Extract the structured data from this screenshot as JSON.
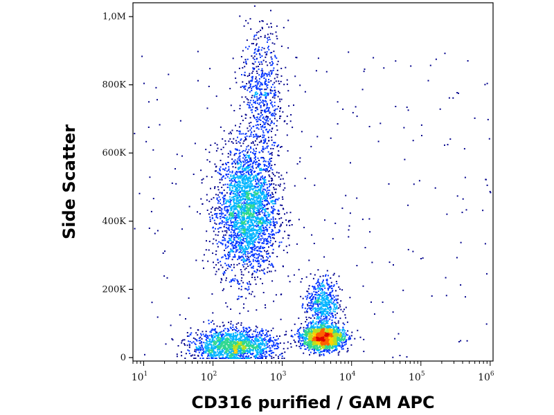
{
  "chart_data": {
    "type": "scatter",
    "subtype": "flow-cytometry density dot plot",
    "xlabel": "CD316 purified / GAM APC",
    "ylabel": "Side Scatter",
    "x_scale": "log",
    "xlim": [
      7,
      1100000
    ],
    "ylim": [
      0,
      1000000
    ],
    "x_ticks": [
      {
        "value": 10,
        "base": "10",
        "exp": "1"
      },
      {
        "value": 100,
        "base": "10",
        "exp": "2"
      },
      {
        "value": 1000,
        "base": "10",
        "exp": "3"
      },
      {
        "value": 10000,
        "base": "10",
        "exp": "4"
      },
      {
        "value": 100000,
        "base": "10",
        "exp": "5"
      },
      {
        "value": 1000000,
        "base": "10",
        "exp": "6"
      }
    ],
    "y_ticks": [
      {
        "value": 0,
        "label": "0"
      },
      {
        "value": 200000,
        "label": "200K"
      },
      {
        "value": 400000,
        "label": "400K"
      },
      {
        "value": 600000,
        "label": "600K"
      },
      {
        "value": 800000,
        "label": "800K"
      },
      {
        "value": 1000000,
        "label": "1,0M"
      }
    ],
    "grid": false,
    "legend": "none",
    "density_colormap": [
      "#00008b",
      "#0033ff",
      "#00b4ff",
      "#30d890",
      "#b8e020",
      "#ffd000",
      "#ff6000",
      "#e00000"
    ],
    "populations": [
      {
        "x_center": 300,
        "y_center": 430000,
        "x_spread_decades": 0.22,
        "y_spread": 95000,
        "relative_size": 1.0
      },
      {
        "x_center": 500,
        "y_center": 760000,
        "x_spread_decades": 0.16,
        "y_spread": 110000,
        "relative_size": 0.25
      },
      {
        "x_center": 200,
        "y_center": 35000,
        "x_spread_decades": 0.3,
        "y_spread": 25000,
        "relative_size": 0.6
      },
      {
        "x_center": 3800,
        "y_center": 60000,
        "x_spread_decades": 0.15,
        "y_spread": 18000,
        "relative_size": 0.7
      },
      {
        "x_center": 3700,
        "y_center": 160000,
        "x_spread_decades": 0.12,
        "y_spread": 40000,
        "relative_size": 0.2
      }
    ]
  }
}
